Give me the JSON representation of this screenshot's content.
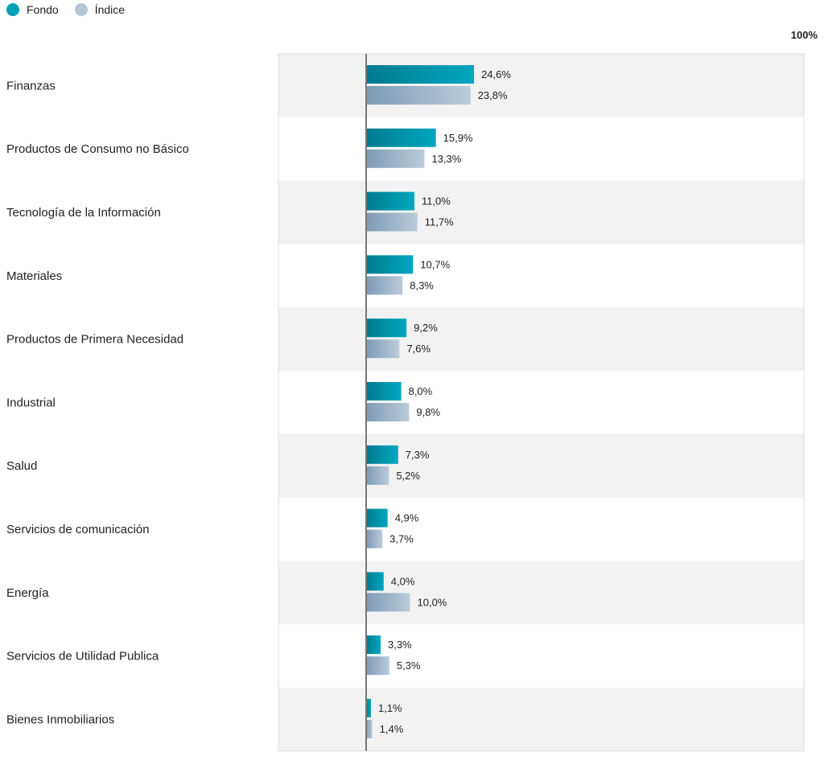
{
  "chart_data": {
    "type": "bar",
    "orientation": "horizontal",
    "categories": [
      "Finanzas",
      "Productos de Consumo no Básico",
      "Tecnología de la Información",
      "Materiales",
      "Productos de Primera Necesidad",
      "Industrial",
      "Salud",
      "Servicios de comunicación",
      "Energía",
      "Servicios de Utilidad Publica",
      "Bienes Inmobiliarios"
    ],
    "series": [
      {
        "name": "Fondo",
        "color": "#009fb7",
        "values": [
          24.6,
          15.9,
          11.0,
          10.7,
          9.2,
          8.0,
          7.3,
          4.9,
          4.0,
          3.3,
          1.1
        ],
        "labels": [
          "24,6%",
          "15,9%",
          "11,0%",
          "10,7%",
          "9,2%",
          "8,0%",
          "7,3%",
          "4,9%",
          "4,0%",
          "3,3%",
          "1,1%"
        ]
      },
      {
        "name": "Índice",
        "color": "#b3c3d6",
        "values": [
          23.8,
          13.3,
          11.7,
          8.3,
          7.6,
          9.8,
          5.2,
          3.7,
          10.0,
          5.3,
          1.4
        ],
        "labels": [
          "23,8%",
          "13,3%",
          "11,7%",
          "8,3%",
          "7,6%",
          "9,8%",
          "5,2%",
          "3,7%",
          "10,0%",
          "5,3%",
          "1,4%"
        ]
      }
    ],
    "xmax_label": "100%",
    "legend": "top-left",
    "grid": false
  }
}
